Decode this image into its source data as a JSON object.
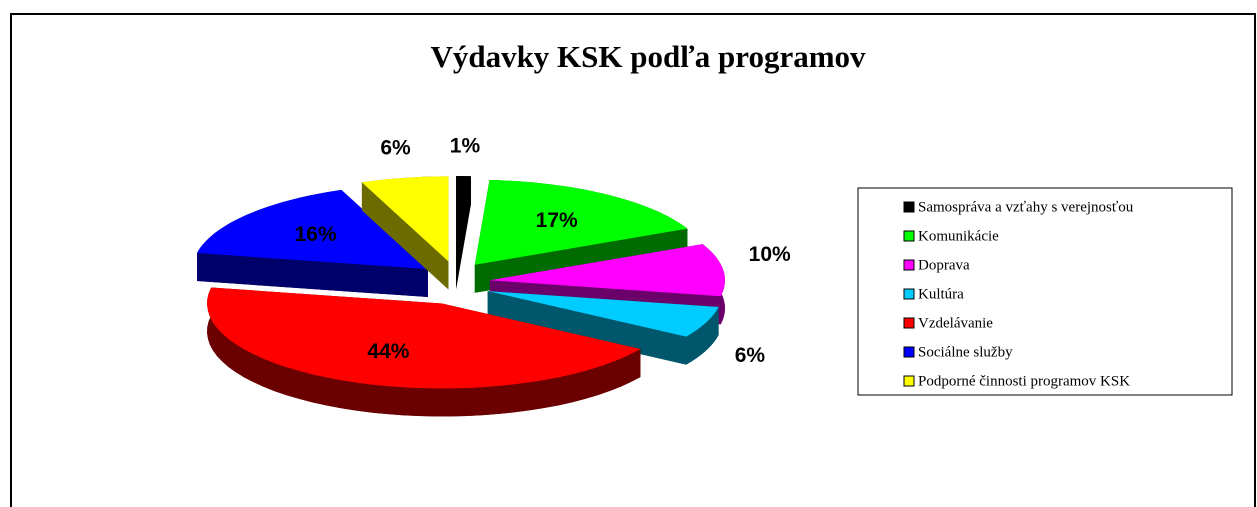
{
  "chart_data": {
    "type": "pie",
    "title": "Výdavky KSK podľa programov",
    "categories": [
      "Samospráva a vzťahy s verejnosťou",
      "Komunikácie",
      "Doprava",
      "Kultúra",
      "Vzdelávanie",
      "Sociálne služby",
      "Podporné činnosti programov KSK"
    ],
    "values": [
      1,
      17,
      10,
      6,
      44,
      16,
      6
    ],
    "value_labels": [
      "1%",
      "17%",
      "10%",
      "6%",
      "44%",
      "16%",
      "6%"
    ],
    "colors": [
      "#000000",
      "#00ff00",
      "#ff00ff",
      "#00ccff",
      "#ff0000",
      "#0000ff",
      "#ffff00"
    ],
    "legend": "right"
  }
}
